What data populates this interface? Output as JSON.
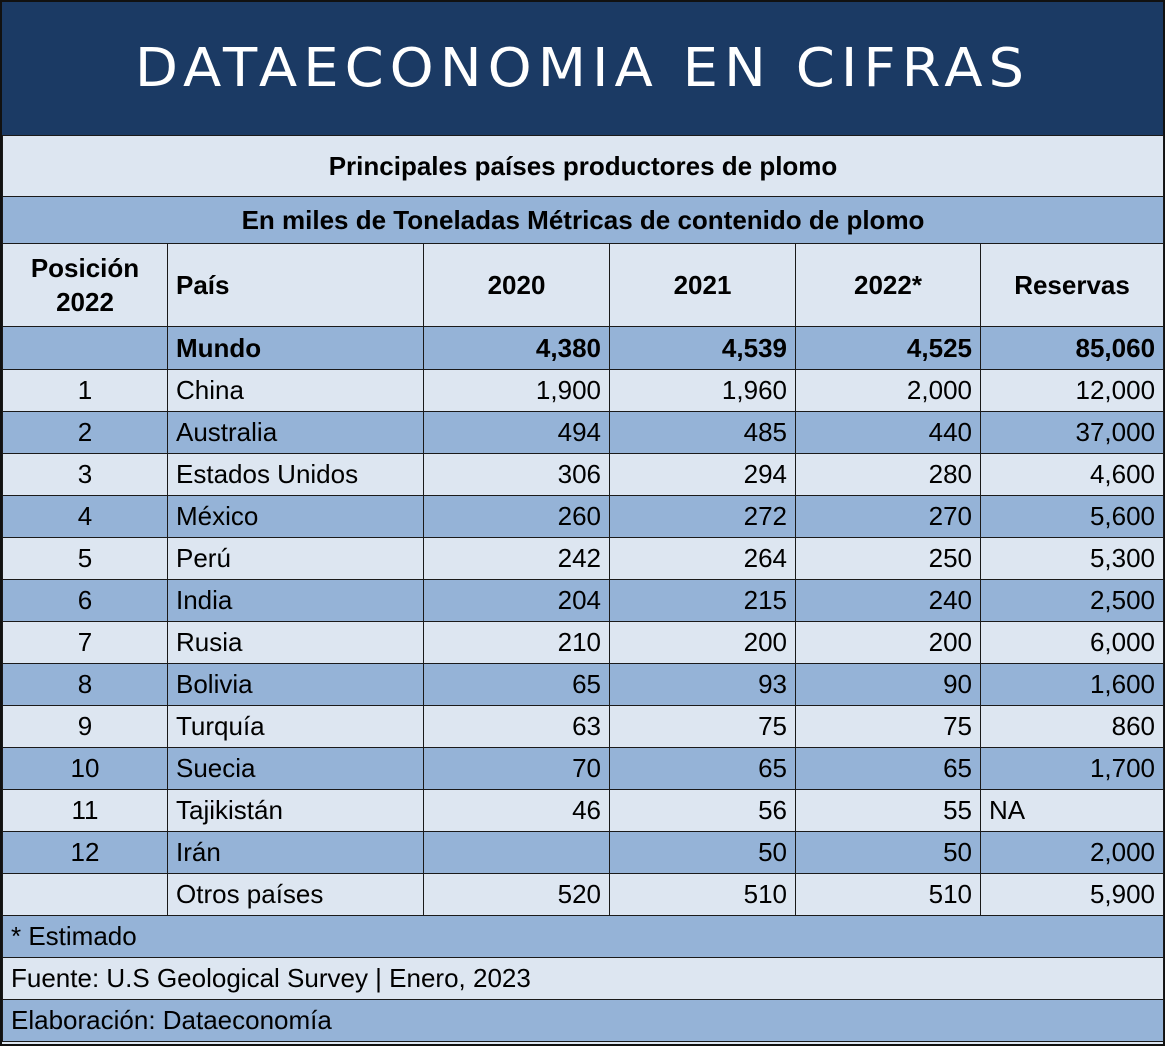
{
  "banner": "DATAECONOMIA EN CIFRAS",
  "chart_data": {
    "type": "table",
    "title": "Principales países productores de plomo",
    "subtitle": "En miles de Toneladas Métricas de contenido de plomo",
    "columns": [
      "Posición 2022",
      "País",
      "2020",
      "2021",
      "2022*",
      "Reservas"
    ],
    "world": {
      "label": "Mundo",
      "v2020": "4,380",
      "v2021": "4,539",
      "v2022": "4,525",
      "reservas": "85,060"
    },
    "rows": [
      {
        "pos": "1",
        "pais": "China",
        "v2020": "1,900",
        "v2021": "1,960",
        "v2022": "2,000",
        "reservas": "12,000"
      },
      {
        "pos": "2",
        "pais": "Australia",
        "v2020": "494",
        "v2021": "485",
        "v2022": "440",
        "reservas": "37,000"
      },
      {
        "pos": "3",
        "pais": "Estados Unidos",
        "v2020": "306",
        "v2021": "294",
        "v2022": "280",
        "reservas": "4,600"
      },
      {
        "pos": "4",
        "pais": "México",
        "v2020": "260",
        "v2021": "272",
        "v2022": "270",
        "reservas": "5,600"
      },
      {
        "pos": "5",
        "pais": "Perú",
        "v2020": "242",
        "v2021": "264",
        "v2022": "250",
        "reservas": "5,300"
      },
      {
        "pos": "6",
        "pais": "India",
        "v2020": "204",
        "v2021": "215",
        "v2022": "240",
        "reservas": "2,500"
      },
      {
        "pos": "7",
        "pais": "Rusia",
        "v2020": "210",
        "v2021": "200",
        "v2022": "200",
        "reservas": "6,000"
      },
      {
        "pos": "8",
        "pais": "Bolivia",
        "v2020": "65",
        "v2021": "93",
        "v2022": "90",
        "reservas": "1,600"
      },
      {
        "pos": "9",
        "pais": "Turquía",
        "v2020": "63",
        "v2021": "75",
        "v2022": "75",
        "reservas": "860"
      },
      {
        "pos": "10",
        "pais": "Suecia",
        "v2020": "70",
        "v2021": "65",
        "v2022": "65",
        "reservas": "1,700"
      },
      {
        "pos": "11",
        "pais": "Tajikistán",
        "v2020": "46",
        "v2021": "56",
        "v2022": "55",
        "reservas": "NA"
      },
      {
        "pos": "12",
        "pais": "Irán",
        "v2020": "",
        "v2021": "50",
        "v2022": "50",
        "reservas": "2,000"
      },
      {
        "pos": "",
        "pais": "Otros países",
        "v2020": "520",
        "v2021": "510",
        "v2022": "510",
        "reservas": "5,900"
      }
    ]
  },
  "footer": {
    "note": "* Estimado",
    "source": "Fuente: U.S Geological Survey | Enero, 2023",
    "credit": "Elaboración: Dataeconomía"
  },
  "colors": {
    "banner": "#1b3a64",
    "dark_row": "#95b3d7",
    "light_row": "#dde6f1"
  }
}
